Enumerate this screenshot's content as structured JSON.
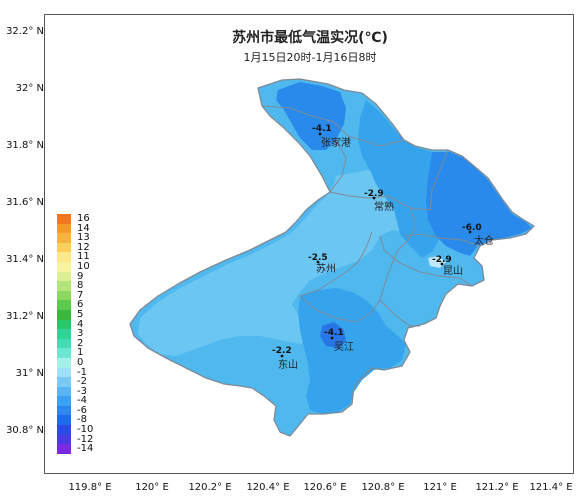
{
  "title": "苏州市最低气温实况(℃)",
  "subtitle": "1月15日20时-1月16日8时",
  "y_ticks": [
    "32.2° N",
    "32° N",
    "31.8° N",
    "31.6° N",
    "31.4° N",
    "31.2° N",
    "31° N",
    "30.8° N"
  ],
  "x_ticks": [
    "119.8° E",
    "120° E",
    "120.2° E",
    "120.4° E",
    "120.6° E",
    "120.8° E",
    "121° E",
    "121.2° E",
    "121.4° E"
  ],
  "legend": [
    {
      "label": "16",
      "color": "#f07820"
    },
    {
      "label": "14",
      "color": "#f59a28"
    },
    {
      "label": "13",
      "color": "#f8b43c"
    },
    {
      "label": "12",
      "color": "#fcd05a"
    },
    {
      "label": "11",
      "color": "#fde88a"
    },
    {
      "label": "10",
      "color": "#f7f3a0"
    },
    {
      "label": "9",
      "color": "#dcef94"
    },
    {
      "label": "8",
      "color": "#b4e47c"
    },
    {
      "label": "7",
      "color": "#8cd862"
    },
    {
      "label": "6",
      "color": "#5cc84c"
    },
    {
      "label": "5",
      "color": "#38b83c"
    },
    {
      "label": "4",
      "color": "#2ac86a"
    },
    {
      "label": "3",
      "color": "#30d496"
    },
    {
      "label": "2",
      "color": "#44dcb8"
    },
    {
      "label": "1",
      "color": "#6ce6d4"
    },
    {
      "label": "0",
      "color": "#a6f0ec"
    },
    {
      "label": "-1",
      "color": "#9ee0fa"
    },
    {
      "label": "-2",
      "color": "#7ccaf4"
    },
    {
      "label": "-3",
      "color": "#5ab6f2"
    },
    {
      "label": "-4",
      "color": "#3aa2f0"
    },
    {
      "label": "-6",
      "color": "#2a88ee"
    },
    {
      "label": "-8",
      "color": "#1e6cec"
    },
    {
      "label": "-10",
      "color": "#2c4ae6"
    },
    {
      "label": "-12",
      "color": "#4a3ae2"
    },
    {
      "label": "-14",
      "color": "#7a2ae0"
    }
  ],
  "stations": [
    {
      "value": "-4.1",
      "name": "张家港"
    },
    {
      "value": "-2.9",
      "name": "常熟"
    },
    {
      "value": "-6.0",
      "name": "太仓"
    },
    {
      "value": "-2.5",
      "name": "苏州"
    },
    {
      "value": "-2.9",
      "name": "昆山"
    },
    {
      "value": "-4.1",
      "name": "吴江"
    },
    {
      "value": "-2.2",
      "name": "东山"
    }
  ],
  "colors": {
    "region_main": "#4fb8ee",
    "region_light": "#6cc6f2",
    "region_mid": "#36a4ec",
    "region_dark": "#2a8aec",
    "boundary": "#7f8a96"
  }
}
